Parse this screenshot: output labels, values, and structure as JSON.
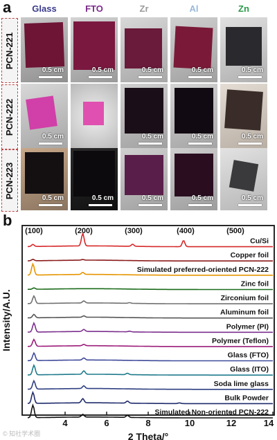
{
  "panel_a": {
    "letter": "a",
    "columns": [
      {
        "label": "Glass",
        "color": "#3a3a8c"
      },
      {
        "label": "FTO",
        "color": "#7a2a8a"
      },
      {
        "label": "Zr",
        "color": "#9a9a9a"
      },
      {
        "label": "Al",
        "color": "#9ab8d8"
      },
      {
        "label": "Zn",
        "color": "#2a9a4a"
      }
    ],
    "rows": [
      {
        "label": "PCN-221"
      },
      {
        "label": "PCN-222"
      },
      {
        "label": "PCN-223"
      }
    ],
    "scale_label": "0.5 cm",
    "cells": [
      [
        "0.5 cm",
        "0.5 cm",
        "0.5 cm",
        "0.5 cm",
        "0.5 cm"
      ],
      [
        "0.5 cm",
        "",
        "0.5 cm",
        "0.5 cm",
        "0.5 cm"
      ],
      [
        "0.5 cm",
        "0.5 cm",
        "0.5 cm",
        "0.5 cm",
        "0.5 cm"
      ]
    ]
  },
  "panel_b": {
    "letter": "b",
    "chart_data": {
      "type": "line",
      "xlabel": "2 Theta/°",
      "ylabel": "Intensity/A.U.",
      "xlim": [
        2,
        14
      ],
      "x_ticks": [
        "4",
        "6",
        "8",
        "10",
        "12",
        "14"
      ],
      "peak_labels": [
        {
          "label": "(100)",
          "x": 2.5
        },
        {
          "label": "(200)",
          "x": 4.9
        },
        {
          "label": "(300)",
          "x": 7.3
        },
        {
          "label": "(400)",
          "x": 9.8
        },
        {
          "label": "(500)",
          "x": 12.2
        }
      ],
      "series": [
        {
          "name": "Cu/Si",
          "color": "#d62728",
          "peaks": [
            [
              2.45,
              3
            ],
            [
              4.85,
              18
            ],
            [
              7.25,
              3
            ],
            [
              9.7,
              9
            ]
          ]
        },
        {
          "name": "Copper foil",
          "color": "#8b1a1a",
          "peaks": [
            [
              2.45,
              2
            ],
            [
              4.85,
              1
            ]
          ]
        },
        {
          "name": "Simulated preferred-oriented PCN-222",
          "color": "#e69500",
          "peaks": [
            [
              2.45,
              16
            ],
            [
              4.85,
              3
            ]
          ]
        },
        {
          "name": "Zinc foil",
          "color": "#1a6b1a",
          "peaks": [
            [
              2.5,
              2
            ]
          ]
        },
        {
          "name": "Zirconium foil",
          "color": "#707070",
          "peaks": [
            [
              2.5,
              11
            ],
            [
              4.9,
              3
            ],
            [
              7.1,
              1
            ]
          ]
        },
        {
          "name": "Aluminum foil",
          "color": "#555555",
          "peaks": [
            [
              2.5,
              5
            ],
            [
              4.9,
              2
            ]
          ]
        },
        {
          "name": "Polymer (PI)",
          "color": "#7b2f8e",
          "peaks": [
            [
              2.5,
              13
            ],
            [
              4.9,
              3
            ],
            [
              7.1,
              1
            ]
          ]
        },
        {
          "name": "Polymer (Teflon)",
          "color": "#9b1b7a",
          "peaks": [
            [
              2.5,
              10
            ],
            [
              4.9,
              2
            ]
          ]
        },
        {
          "name": "Glass (FTO)",
          "color": "#3f4a9a",
          "peaks": [
            [
              2.5,
              11
            ],
            [
              4.9,
              3
            ]
          ]
        },
        {
          "name": "Glass (ITO)",
          "color": "#1f7a8c",
          "peaks": [
            [
              2.5,
              14
            ],
            [
              4.9,
              5
            ],
            [
              7.0,
              2
            ]
          ]
        },
        {
          "name": "Soda lime glass",
          "color": "#2c3e80",
          "peaks": [
            [
              2.5,
              12
            ],
            [
              4.9,
              4
            ]
          ]
        },
        {
          "name": "Bulk Powder",
          "color": "#1f2a6b",
          "peaks": [
            [
              2.45,
              16
            ],
            [
              4.85,
              6
            ],
            [
              7.0,
              3
            ],
            [
              9.5,
              1
            ]
          ]
        },
        {
          "name": "Simulated Non-oriented PCN-222",
          "color": "#111111",
          "peaks": [
            [
              2.45,
              18
            ],
            [
              4.85,
              4
            ],
            [
              7.0,
              3
            ]
          ]
        }
      ]
    }
  },
  "watermark": "© 知社学术圈"
}
